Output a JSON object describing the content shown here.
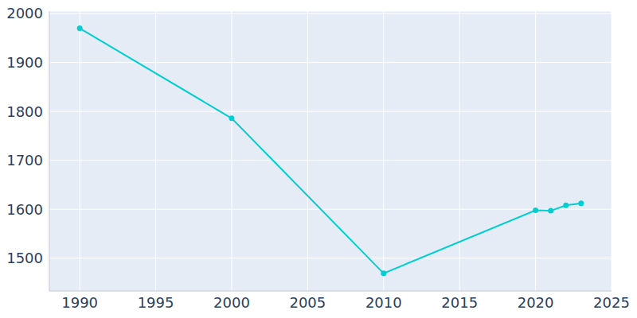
{
  "chart_data": {
    "type": "line",
    "x": [
      1990,
      2000,
      2010,
      2020,
      2021,
      2022,
      2023
    ],
    "values": [
      1970,
      1786,
      1469,
      1598,
      1597,
      1608,
      1612
    ],
    "color": "#00ced1",
    "marker": "circle",
    "xlim": [
      1988,
      2025
    ],
    "xticks": [
      1990,
      1995,
      2000,
      2005,
      2010,
      2015,
      2020,
      2025
    ],
    "ylim": [
      1433,
      2005
    ],
    "yticks": [
      1500,
      1600,
      1700,
      1800,
      1900,
      2000
    ],
    "grid": true
  }
}
